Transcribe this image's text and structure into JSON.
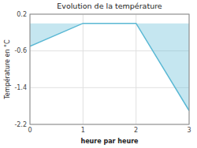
{
  "chart_data": {
    "type": "area",
    "title": "Evolution de la température",
    "xlabel": "heure par heure",
    "ylabel": "Température en °C",
    "x": [
      0,
      1,
      2,
      3
    ],
    "values": [
      -0.5,
      0.0,
      0.0,
      -1.9
    ],
    "color": "#5ab8d4",
    "xlim": [
      0,
      3
    ],
    "ylim": [
      -2.2,
      0.2
    ],
    "xticks": [
      0,
      1,
      2,
      3
    ],
    "yticks": [
      0.2,
      -0.6,
      -1.4,
      -2.2
    ],
    "grid": true
  }
}
